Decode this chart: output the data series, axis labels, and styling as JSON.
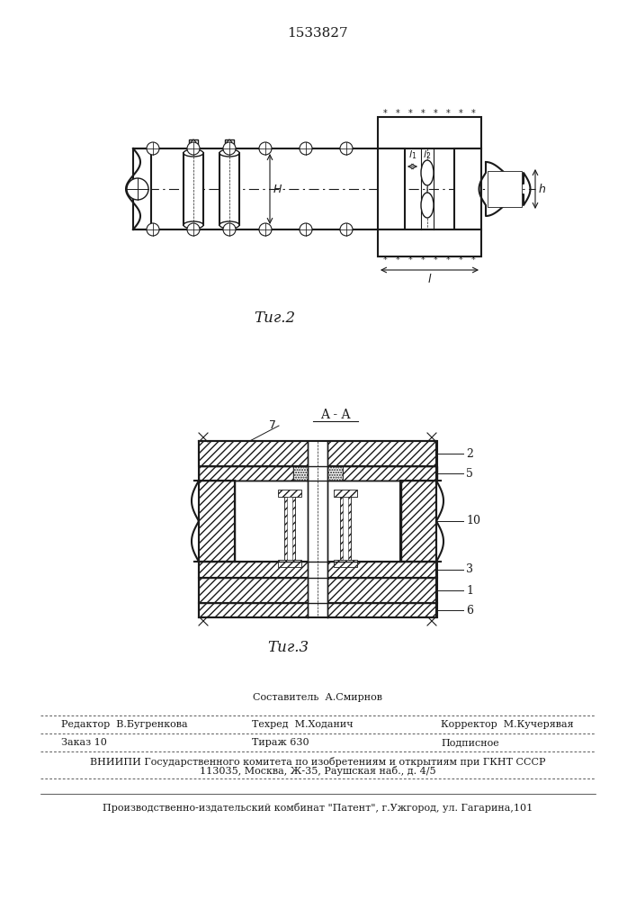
{
  "patent_number": "1533827",
  "fig2_label": "Τиг.2",
  "fig3_label": "Τиг.3",
  "fig3_title": "A - A",
  "label_2": "2",
  "label_5": "5",
  "label_10": "10",
  "label_3": "3",
  "label_1": "1",
  "label_6": "6",
  "footer_line1": "Составитель  А.Смирнов",
  "footer_line2_left": "Редактор  В.Бугренкова",
  "footer_line2_mid": "Техред  М.Ходанич",
  "footer_line2_right": "Корректор  М.Кучерявая",
  "footer_line3_left": "Заказ 10",
  "footer_line3_mid": "Тираж 630",
  "footer_line3_right": "Подписное",
  "footer_line4": "ВНИИПИ Государственного комитета по изобретениям и открытиям при ГКНТ СССР",
  "footer_line5": "113035, Москва, Ж-35, Раушская наб., д. 4/5",
  "footer_line6": "Производственно-издательский комбинат \"Патент\", г.Ужгород, ул. Гагарина,101",
  "line_color": "#1a1a1a"
}
